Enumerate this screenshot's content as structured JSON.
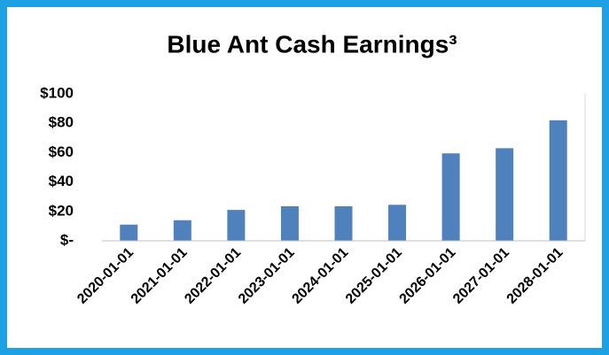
{
  "chart_data": {
    "type": "bar",
    "title": "Blue Ant Cash Earnings³",
    "categories": [
      "2020-01-01",
      "2021-01-01",
      "2022-01-01",
      "2023-01-01",
      "2024-01-01",
      "2025-01-01",
      "2026-01-01",
      "2027-01-01",
      "2028-01-01"
    ],
    "values": [
      11,
      14,
      21,
      23.5,
      23.5,
      24.5,
      59.5,
      63,
      82
    ],
    "color": "#4f81bd",
    "ylim": [
      0,
      100
    ],
    "yticks": [
      {
        "value": 0,
        "label": "$-"
      },
      {
        "value": 20,
        "label": "$20"
      },
      {
        "value": 40,
        "label": "$40"
      },
      {
        "value": 60,
        "label": "$60"
      },
      {
        "value": 80,
        "label": "$80"
      },
      {
        "value": 100,
        "label": "$100"
      }
    ],
    "grid": false
  }
}
